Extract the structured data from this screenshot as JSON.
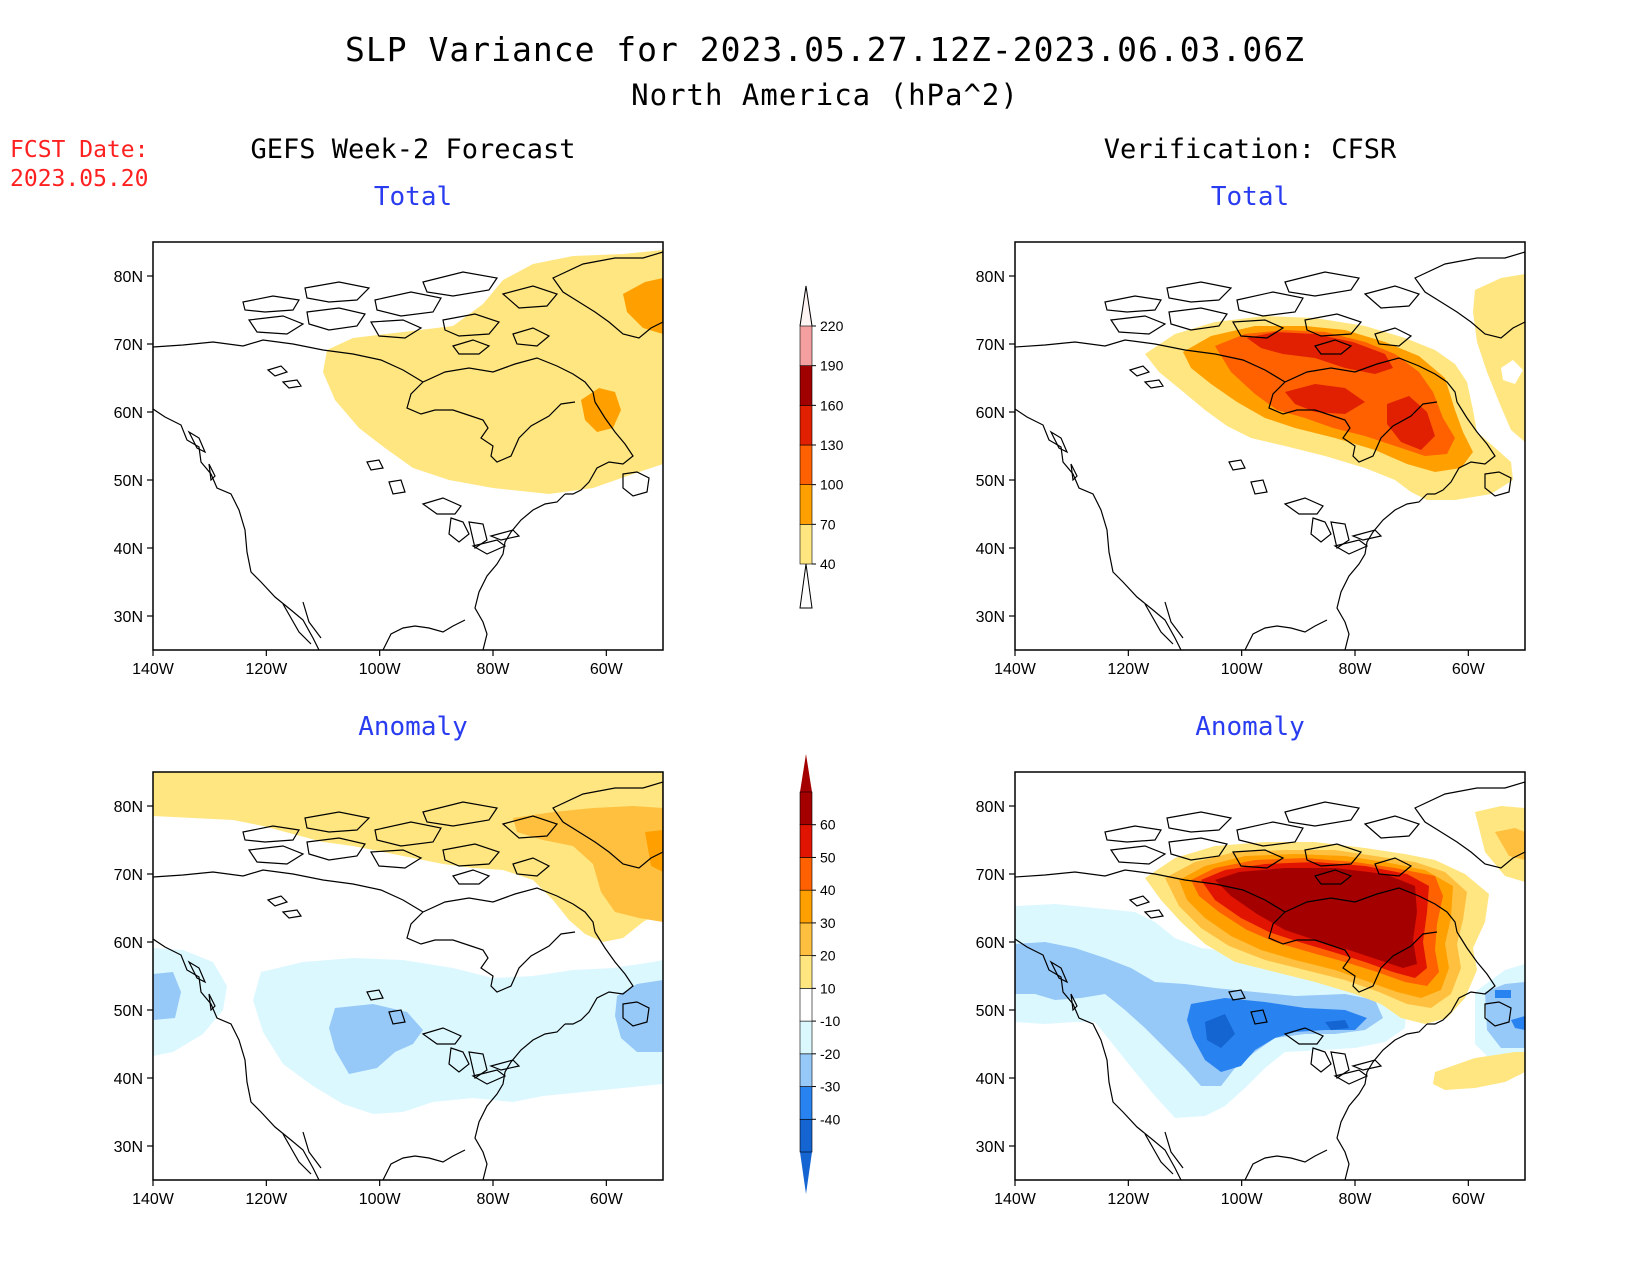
{
  "header": {
    "title": "SLP Variance for 2023.05.27.12Z-2023.06.03.06Z",
    "subtitle": "North America (hPa^2)"
  },
  "fcst": {
    "label": "FCST Date:",
    "date": "2023.05.20"
  },
  "columns": {
    "left": "GEFS Week-2 Forecast",
    "right": "Verification: CFSR"
  },
  "panels": {
    "total_left": "Total",
    "total_right": "Total",
    "anom_left": "Anomaly",
    "anom_right": "Anomaly"
  },
  "axes": {
    "lat_labels": [
      "80N",
      "70N",
      "60N",
      "50N",
      "40N",
      "30N"
    ],
    "lon_labels": [
      "140W",
      "120W",
      "100W",
      "80W",
      "60W"
    ],
    "lat_range": [
      25,
      85
    ],
    "lon_range": [
      -140,
      -50
    ]
  },
  "colorbars": {
    "total": {
      "levels": [
        "40",
        "70",
        "100",
        "130",
        "160",
        "190",
        "220"
      ],
      "colors": [
        "#ffe680",
        "#ffa000",
        "#ff6000",
        "#e02000",
        "#a00000",
        "#f4a0a0",
        "#fcdcdc"
      ]
    },
    "anomaly": {
      "levels": [
        "-40",
        "-30",
        "-20",
        "-10",
        "10",
        "20",
        "30",
        "40",
        "50",
        "60"
      ],
      "colors": [
        "#1464d2",
        "#2882f0",
        "#96c8f8",
        "#dcf8ff",
        "#ffffff",
        "#ffe680",
        "#ffc040",
        "#ffa000",
        "#ff6000",
        "#e01400",
        "#a50000"
      ]
    }
  }
}
